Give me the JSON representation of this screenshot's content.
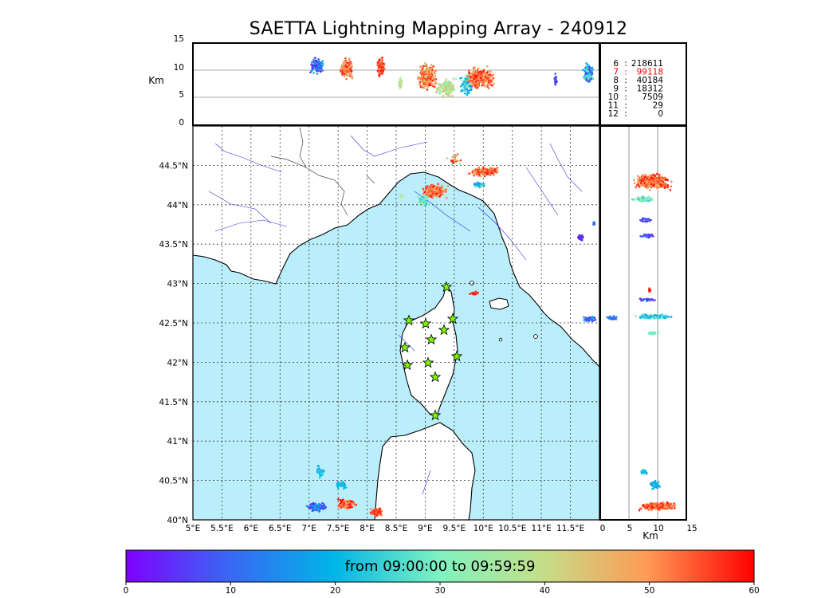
{
  "title": "SAETTA Lightning Mapping Array - 240912",
  "colorbar": {
    "label": "from 09:00:00 to 09:59:59",
    "ticks": [
      "0",
      "10",
      "20",
      "30",
      "40",
      "50",
      "60"
    ],
    "min": 0,
    "max": 60
  },
  "map": {
    "lon_ticks": [
      "5°E",
      "5.5°E",
      "6°E",
      "6.5°E",
      "7°E",
      "7.5°E",
      "8°E",
      "8.5°E",
      "9°E",
      "9.5°E",
      "10°E",
      "10.5°E",
      "11°E",
      "11.5°E"
    ],
    "lat_ticks": [
      "44.5°N",
      "44°N",
      "43.5°N",
      "43°N",
      "42.5°N",
      "42°N",
      "41.5°N",
      "41°N",
      "40.5°N",
      "40°N"
    ],
    "lon_range": [
      5,
      12
    ],
    "lat_range": [
      40,
      45
    ],
    "sea_color": "#b9eefa",
    "land_color": "#ffffff",
    "river_color": "#3333dd"
  },
  "altitude_panel_top": {
    "ylabel": "Km",
    "y_ticks": [
      "15",
      "10",
      "5",
      "0"
    ]
  },
  "altitude_panel_right": {
    "xlabel": "Km",
    "x_ticks": [
      "0",
      "5",
      "10",
      "15"
    ]
  },
  "station_counts": [
    {
      "stations": "6",
      "sep": ":",
      "count": "218611",
      "color": "#000000"
    },
    {
      "stations": "7",
      "sep": ":",
      "count": "99118",
      "color": "#ff0000"
    },
    {
      "stations": "8",
      "sep": ":",
      "count": "40184",
      "color": "#000000"
    },
    {
      "stations": "9",
      "sep": ":",
      "count": "18312",
      "color": "#000000"
    },
    {
      "stations": "10",
      "sep": ":",
      "count": "7509",
      "color": "#000000"
    },
    {
      "stations": "11",
      "sep": ":",
      "count": "29",
      "color": "#000000"
    },
    {
      "stations": "12",
      "sep": ":",
      "count": "0",
      "color": "#000000"
    }
  ],
  "stations_icon": "star-icon",
  "station_color": "#7cfc00",
  "legend_colors": {
    "early": "#7f00ff",
    "late": "#ff0000"
  }
}
